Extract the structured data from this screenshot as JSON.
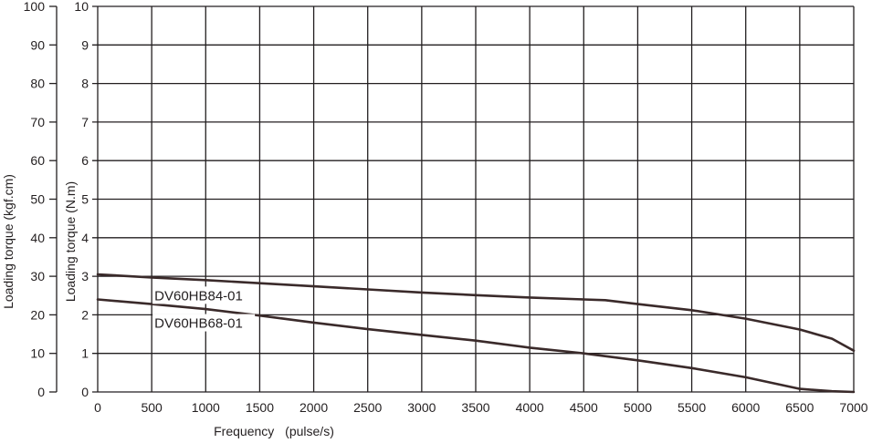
{
  "chart_data": {
    "type": "line",
    "xlabel": "Frequency",
    "xlabel_unit": "(pulse/s)",
    "ylabel_left": "Loading torque (kgf.cm)",
    "ylabel_right": "Loading torque (N.m)",
    "xlim": [
      0,
      7000
    ],
    "ylim": [
      0,
      3
    ],
    "ylim_kgfcm": [
      0,
      100
    ],
    "ylim_nm": [
      0,
      10
    ],
    "grid": true,
    "x_ticks": [
      "0",
      "500",
      "1000",
      "1500",
      "2000",
      "2500",
      "3000",
      "3500",
      "4000",
      "4500",
      "5000",
      "5500",
      "6000",
      "6500",
      "7000"
    ],
    "y_ticks_left": [
      "0",
      "10",
      "20",
      "30",
      "40",
      "50",
      "60",
      "70",
      "80",
      "90",
      "100"
    ],
    "y_ticks_right": [
      "0",
      "1",
      "2",
      "3",
      "4",
      "5",
      "6",
      "7",
      "8",
      "9",
      "10"
    ],
    "series": [
      {
        "name": "DV60HB84-01",
        "x": [
          0,
          500,
          1000,
          1500,
          2000,
          2500,
          3000,
          3500,
          4000,
          4500,
          4700,
          5000,
          5500,
          6000,
          6500,
          6800,
          7000
        ],
        "values": [
          3.05,
          2.97,
          2.9,
          2.82,
          2.74,
          2.66,
          2.58,
          2.51,
          2.45,
          2.4,
          2.38,
          2.28,
          2.12,
          1.9,
          1.62,
          1.38,
          1.07
        ]
      },
      {
        "name": "DV60HB68-01",
        "x": [
          0,
          500,
          1000,
          1500,
          2000,
          2500,
          3000,
          3500,
          4000,
          4500,
          5000,
          5500,
          6000,
          6500,
          6800,
          7000
        ],
        "values": [
          2.4,
          2.28,
          2.15,
          1.98,
          1.8,
          1.63,
          1.48,
          1.33,
          1.15,
          1.0,
          0.82,
          0.62,
          0.38,
          0.08,
          0.02,
          0.0
        ]
      }
    ]
  }
}
